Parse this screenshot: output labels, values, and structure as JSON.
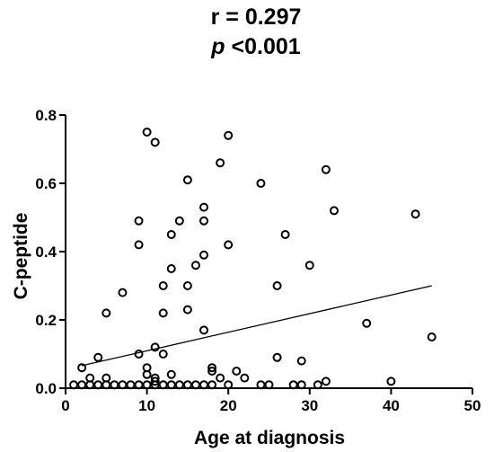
{
  "annotations": {
    "r_line": "r = 0.297",
    "p_symbol": "p",
    "p_value": "<0.001"
  },
  "chart_data": {
    "type": "scatter",
    "title": "",
    "xlabel": "Age at diagnosis",
    "ylabel": "C-peptide",
    "xlim": [
      0,
      50
    ],
    "ylim": [
      0,
      0.8
    ],
    "x_ticks": [
      0,
      10,
      20,
      30,
      40,
      50
    ],
    "x_tick_labels": [
      "0",
      "10",
      "20",
      "30",
      "40",
      "50"
    ],
    "y_ticks": [
      0,
      0.2,
      0.4,
      0.6,
      0.8
    ],
    "y_tick_labels": [
      "0.0",
      "0.2",
      "0.4",
      "0.6",
      "0.8"
    ],
    "grid": false,
    "marker": "open-circle",
    "points": [
      [
        10,
        0.75
      ],
      [
        20,
        0.74
      ],
      [
        11,
        0.72
      ],
      [
        19,
        0.66
      ],
      [
        32,
        0.64
      ],
      [
        15,
        0.61
      ],
      [
        24,
        0.6
      ],
      [
        17,
        0.53
      ],
      [
        33,
        0.52
      ],
      [
        43,
        0.51
      ],
      [
        9,
        0.49
      ],
      [
        14,
        0.49
      ],
      [
        17,
        0.49
      ],
      [
        13,
        0.45
      ],
      [
        27,
        0.45
      ],
      [
        9,
        0.42
      ],
      [
        20,
        0.42
      ],
      [
        17,
        0.39
      ],
      [
        16,
        0.36
      ],
      [
        30,
        0.36
      ],
      [
        13,
        0.35
      ],
      [
        12,
        0.3
      ],
      [
        15,
        0.3
      ],
      [
        26,
        0.3
      ],
      [
        7,
        0.28
      ],
      [
        15,
        0.23
      ],
      [
        5,
        0.22
      ],
      [
        12,
        0.22
      ],
      [
        37,
        0.19
      ],
      [
        17,
        0.17
      ],
      [
        45,
        0.15
      ],
      [
        11,
        0.12
      ],
      [
        9,
        0.1
      ],
      [
        12,
        0.1
      ],
      [
        4,
        0.09
      ],
      [
        26,
        0.09
      ],
      [
        29,
        0.08
      ],
      [
        2,
        0.06
      ],
      [
        10,
        0.06
      ],
      [
        18,
        0.06
      ],
      [
        18,
        0.05
      ],
      [
        21,
        0.05
      ],
      [
        10,
        0.04
      ],
      [
        13,
        0.04
      ],
      [
        3,
        0.03
      ],
      [
        5,
        0.03
      ],
      [
        11,
        0.03
      ],
      [
        19,
        0.03
      ],
      [
        22,
        0.03
      ],
      [
        11,
        0.02
      ],
      [
        32,
        0.02
      ],
      [
        40,
        0.02
      ],
      [
        1,
        0.01
      ],
      [
        2,
        0.01
      ],
      [
        3,
        0.01
      ],
      [
        4,
        0.01
      ],
      [
        5,
        0.01
      ],
      [
        6,
        0.01
      ],
      [
        7,
        0.01
      ],
      [
        8,
        0.01
      ],
      [
        9,
        0.01
      ],
      [
        10,
        0.01
      ],
      [
        11,
        0.01
      ],
      [
        12,
        0.01
      ],
      [
        13,
        0.01
      ],
      [
        14,
        0.01
      ],
      [
        15,
        0.01
      ],
      [
        16,
        0.01
      ],
      [
        17,
        0.01
      ],
      [
        18,
        0.01
      ],
      [
        20,
        0.01
      ],
      [
        24,
        0.01
      ],
      [
        25,
        0.01
      ],
      [
        28,
        0.01
      ],
      [
        29,
        0.01
      ],
      [
        31,
        0.01
      ]
    ],
    "regression_line": {
      "x": [
        2,
        45
      ],
      "y": [
        0.066,
        0.3
      ]
    }
  }
}
